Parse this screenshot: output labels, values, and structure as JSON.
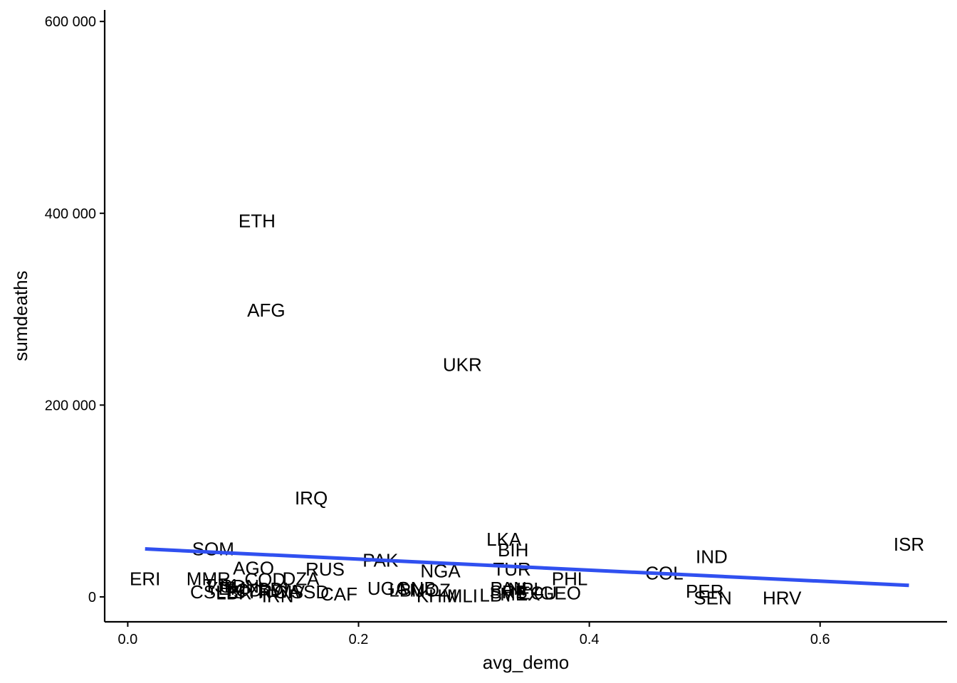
{
  "chart_data": {
    "type": "scatter",
    "xlabel": "avg_demo",
    "ylabel": "sumdeaths",
    "xlim": [
      -0.02,
      0.71
    ],
    "ylim": [
      -26000,
      612000
    ],
    "x_ticks": [
      0.0,
      0.2,
      0.4,
      0.6
    ],
    "x_tick_labels": [
      "0.0",
      "0.2",
      "0.4",
      "0.6"
    ],
    "y_ticks": [
      0,
      200000,
      400000,
      600000
    ],
    "y_tick_labels": [
      "0",
      "200 000",
      "400 000",
      "600 000"
    ],
    "grid": false,
    "legend": "none",
    "trend_color": "#3050f0",
    "points": [
      {
        "label": "ETH",
        "x": 0.112,
        "y": 392000
      },
      {
        "label": "AFG",
        "x": 0.12,
        "y": 299000
      },
      {
        "label": "UKR",
        "x": 0.29,
        "y": 242000
      },
      {
        "label": "IRQ",
        "x": 0.159,
        "y": 103000
      },
      {
        "label": "LKA",
        "x": 0.326,
        "y": 60000
      },
      {
        "label": "ISR",
        "x": 0.677,
        "y": 55000
      },
      {
        "label": "BIH",
        "x": 0.334,
        "y": 49000
      },
      {
        "label": "SOM",
        "x": 0.074,
        "y": 50000
      },
      {
        "label": "IND",
        "x": 0.506,
        "y": 42000
      },
      {
        "label": "PAK",
        "x": 0.219,
        "y": 38000
      },
      {
        "label": "AGO",
        "x": 0.109,
        "y": 30000
      },
      {
        "label": "RUS",
        "x": 0.171,
        "y": 29000
      },
      {
        "label": "TUR",
        "x": 0.333,
        "y": 29000
      },
      {
        "label": "NGA",
        "x": 0.271,
        "y": 27000
      },
      {
        "label": "COL",
        "x": 0.465,
        "y": 25000
      },
      {
        "label": "DZA",
        "x": 0.15,
        "y": 19000
      },
      {
        "label": "ERI",
        "x": 0.015,
        "y": 19000
      },
      {
        "label": "COD",
        "x": 0.119,
        "y": 18000
      },
      {
        "label": "MMR",
        "x": 0.07,
        "y": 19000
      },
      {
        "label": "PHL",
        "x": 0.383,
        "y": 19000
      },
      {
        "label": "PER",
        "x": 0.5,
        "y": 6000
      },
      {
        "label": "UGA",
        "x": 0.225,
        "y": 9000
      },
      {
        "label": "MOZ",
        "x": 0.262,
        "y": 7000
      },
      {
        "label": "SDN",
        "x": 0.097,
        "y": 11000
      },
      {
        "label": "TJK",
        "x": 0.08,
        "y": 12000
      },
      {
        "label": "BDI",
        "x": 0.126,
        "y": 8000
      },
      {
        "label": "RWA",
        "x": 0.132,
        "y": 6000
      },
      {
        "label": "SYR",
        "x": 0.108,
        "y": 5000
      },
      {
        "label": "YEM",
        "x": 0.085,
        "y": 9000
      },
      {
        "label": "CSLE",
        "x": 0.075,
        "y": 5000
      },
      {
        "label": "TCD",
        "x": 0.1,
        "y": 7000
      },
      {
        "label": "LBR",
        "x": 0.092,
        "y": 4000
      },
      {
        "label": "IRN",
        "x": 0.13,
        "y": 1000
      },
      {
        "label": "CIV",
        "x": 0.14,
        "y": 5000
      },
      {
        "label": "CAF",
        "x": 0.183,
        "y": 3000
      },
      {
        "label": "SSD",
        "x": 0.158,
        "y": 5000
      },
      {
        "label": "LBN",
        "x": 0.242,
        "y": 7000
      },
      {
        "label": "GNB",
        "x": 0.25,
        "y": 9000
      },
      {
        "label": "KHM",
        "x": 0.268,
        "y": 1000
      },
      {
        "label": "MLI",
        "x": 0.29,
        "y": 1000
      },
      {
        "label": "PAN",
        "x": 0.33,
        "y": 9000
      },
      {
        "label": "NPL",
        "x": 0.345,
        "y": 8000
      },
      {
        "label": "SRB",
        "x": 0.33,
        "y": 5000
      },
      {
        "label": "LBY",
        "x": 0.32,
        "y": 2000
      },
      {
        "label": "MEX",
        "x": 0.34,
        "y": 3000
      },
      {
        "label": "ECU",
        "x": 0.355,
        "y": 4000
      },
      {
        "label": "GEO",
        "x": 0.375,
        "y": 4000
      },
      {
        "label": "SEN",
        "x": 0.507,
        "y": -1000
      },
      {
        "label": "HRV",
        "x": 0.567,
        "y": -1000
      }
    ],
    "trend": {
      "type": "linear",
      "x": [
        0.015,
        0.677
      ],
      "y": [
        50000,
        12000
      ]
    }
  }
}
